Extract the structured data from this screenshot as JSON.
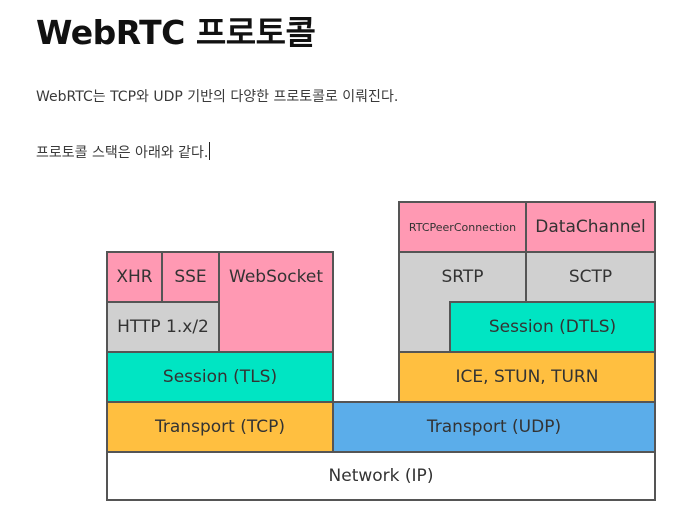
{
  "page": {
    "title": "WebRTC 프로토콜",
    "paragraph_1": "WebRTC는 TCP와 UDP 기반의 다양한 프로토콜로 이뤄진다.",
    "paragraph_2": "프로토콜 스택은 아래와 같다."
  },
  "diagram": {
    "layers": {
      "xhr": "XHR",
      "sse": "SSE",
      "websocket": "WebSocket",
      "http": "HTTP 1.x/2",
      "session_tls": "Session (TLS)",
      "transport_tcp": "Transport (TCP)",
      "rtcpeerconnection": "RTCPeerConnection",
      "datachannel": "DataChannel",
      "srtp": "SRTP",
      "sctp": "SCTP",
      "session_dtls": "Session (DTLS)",
      "ice": "ICE, STUN, TURN",
      "transport_udp": "Transport (UDP)",
      "network": "Network (IP)"
    },
    "colors": {
      "application": "#ff99b3",
      "protocol": "#d0d0d0",
      "session": "#00e5c3",
      "ice": "#ffbf40",
      "transport_tcp": "#ffbf40",
      "transport_udp": "#5badea",
      "network": "#ffffff"
    }
  }
}
